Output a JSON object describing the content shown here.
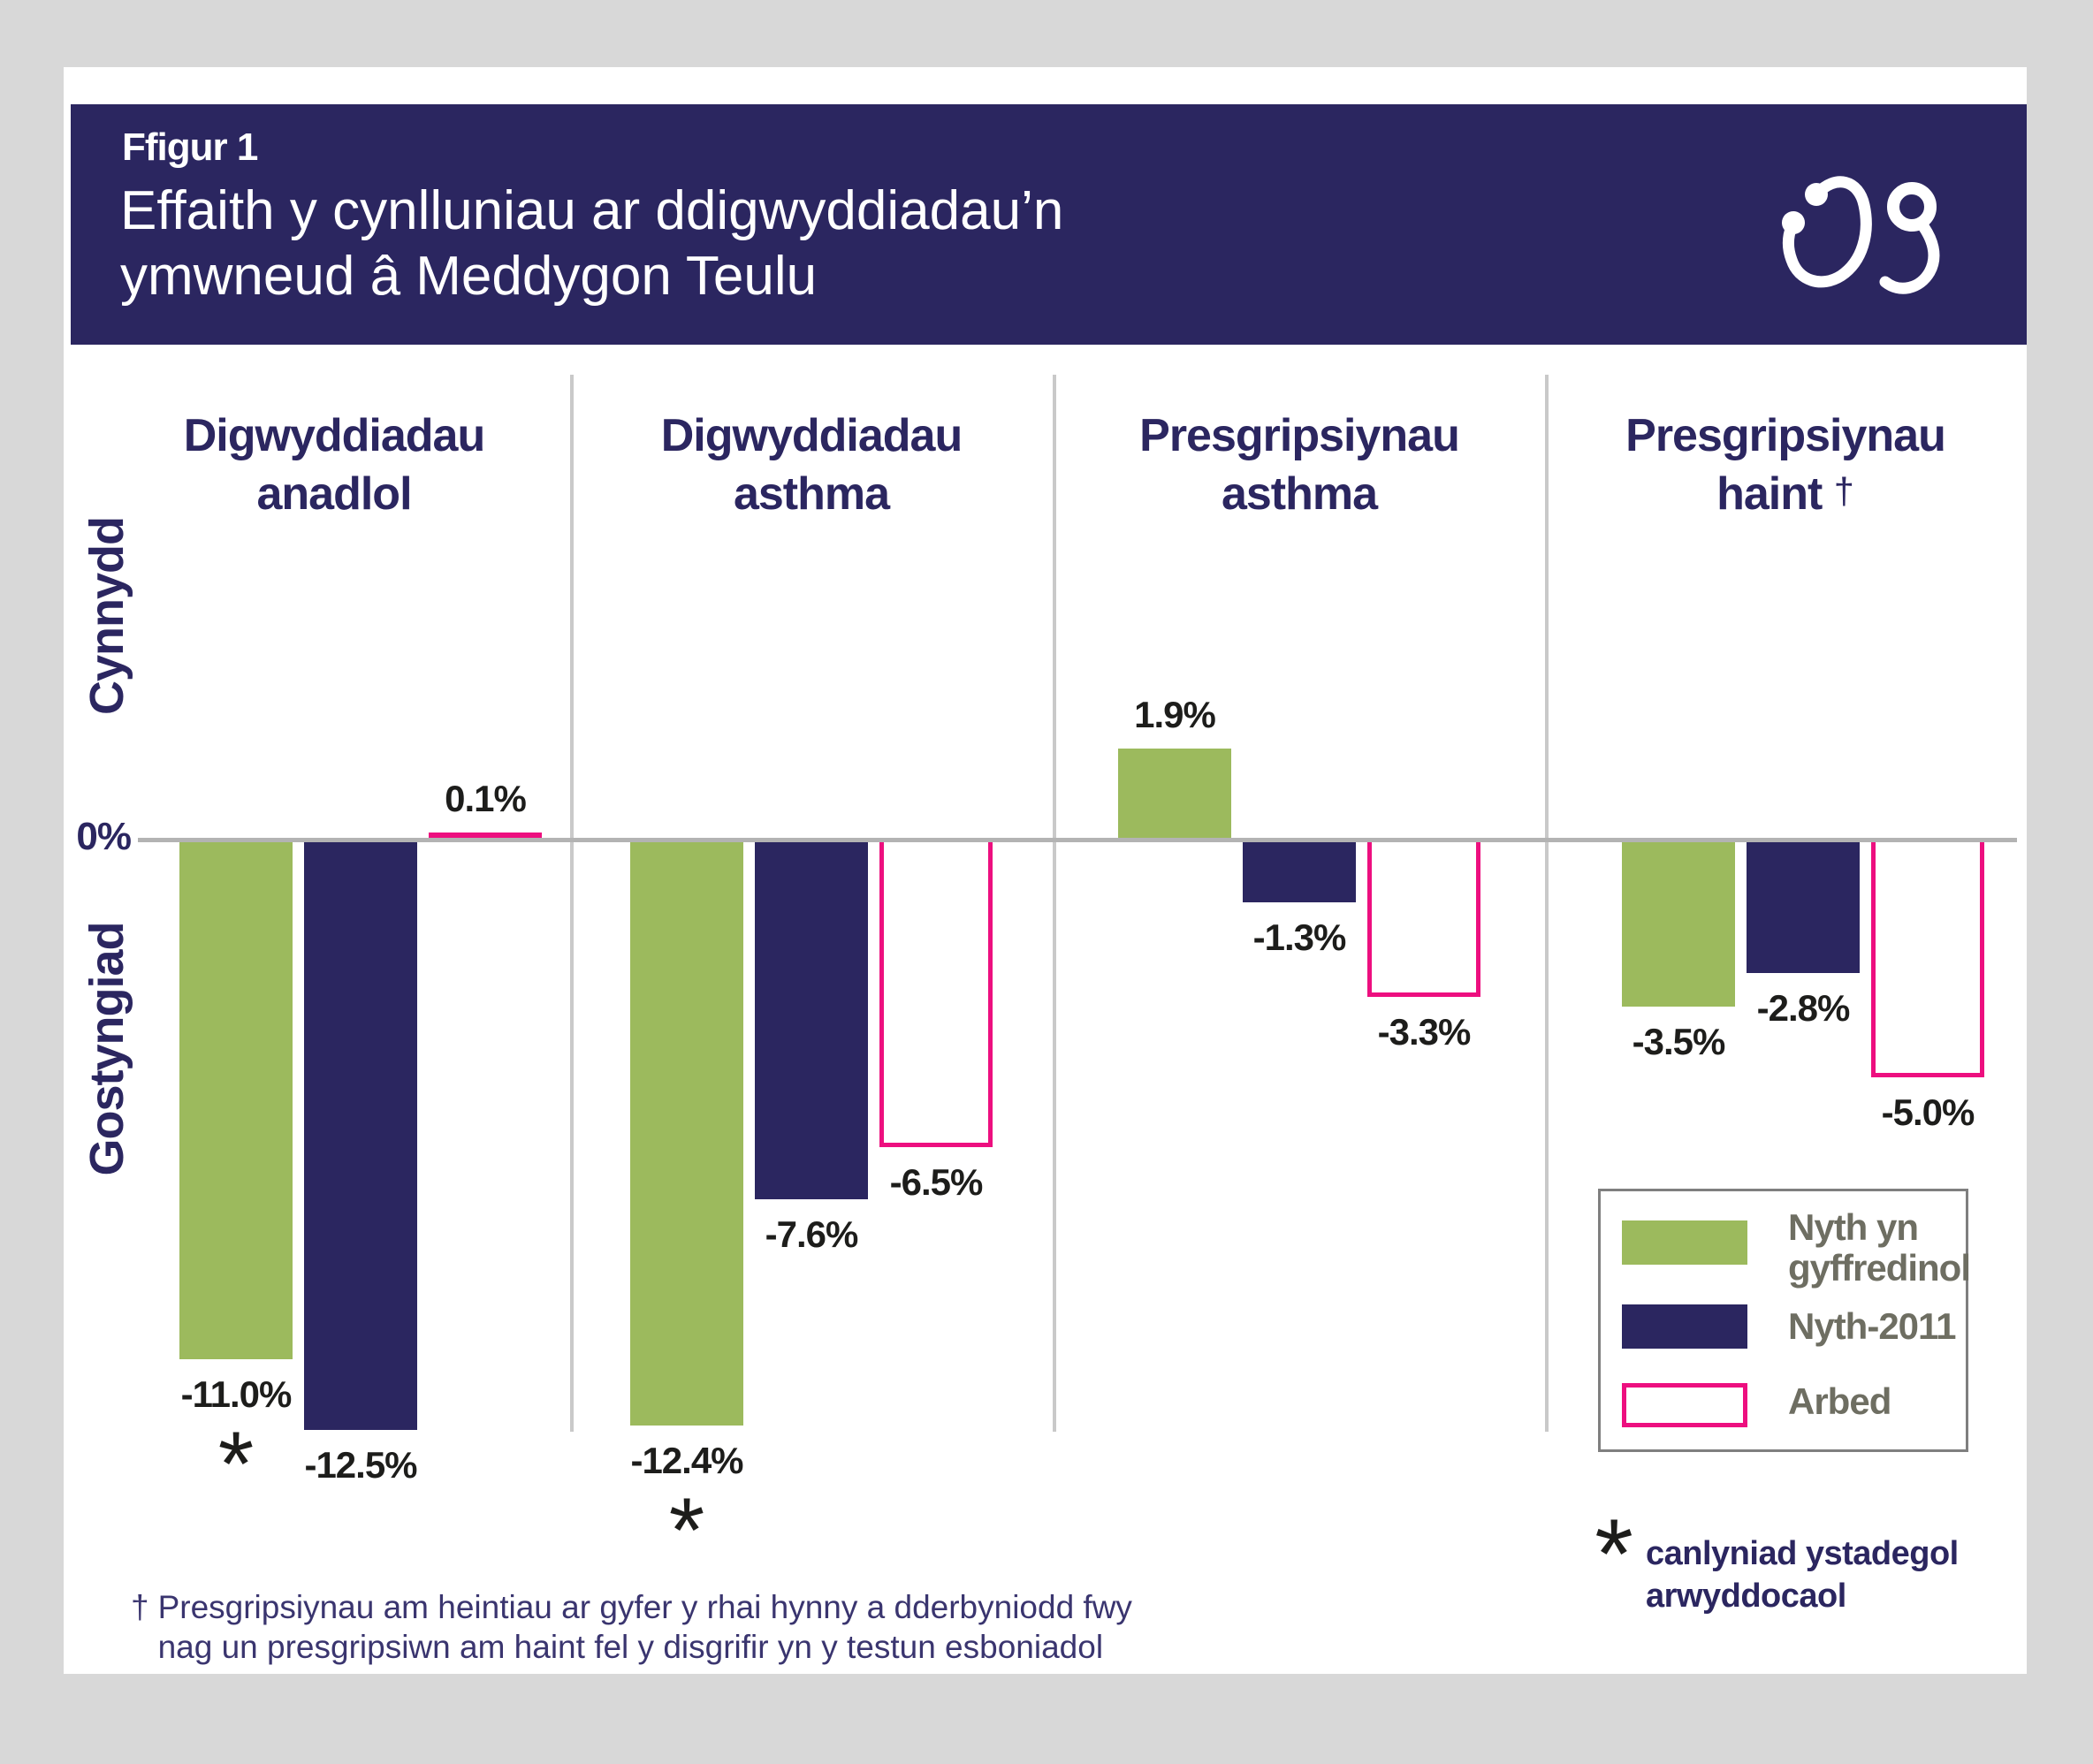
{
  "page": {
    "background": "#d8d8d8",
    "card_background": "#ffffff"
  },
  "header": {
    "figure_label": "Ffigur 1",
    "title_line1": "Effaith y cynlluniau ar ddigwyddiadau’n",
    "title_line2": "ymwneud â Meddygon Teulu",
    "band_color": "#2b2660",
    "icon": "stethoscope-icon"
  },
  "axis": {
    "zero_label": "0%",
    "increase_label": "Cynnydd",
    "decrease_label": "Gostyngiad"
  },
  "chart_data": {
    "type": "bar",
    "unit": "%",
    "baseline": 0,
    "gridlines": false,
    "ylim": [
      -13.5,
      6
    ],
    "categories": [
      {
        "line1": "Digwyddiadau",
        "line2": "anadlol",
        "dagger": false
      },
      {
        "line1": "Digwyddiadau",
        "line2": "asthma",
        "dagger": false
      },
      {
        "line1": "Presgripsiynau",
        "line2": "asthma",
        "dagger": false
      },
      {
        "line1": "Presgripsiynau",
        "line2": "haint",
        "dagger": true
      }
    ],
    "series": [
      {
        "name": "Nyth yn gyffredinol",
        "style": "fill",
        "color": "#9cba5d",
        "values": [
          -11.0,
          -12.4,
          1.9,
          -3.5
        ],
        "labels": [
          "-11.0%",
          "-12.4%",
          "1.9%",
          "-3.5%"
        ]
      },
      {
        "name": "Nyth-2011",
        "style": "fill",
        "color": "#2b2660",
        "values": [
          -12.5,
          -7.6,
          -1.3,
          -2.8
        ],
        "labels": [
          "-12.5%",
          "-7.6%",
          "-1.3%",
          "-2.8%"
        ]
      },
      {
        "name": "Arbed",
        "style": "outline",
        "color": "#ed0f7f",
        "values": [
          0.1,
          -6.5,
          -3.3,
          -5.0
        ],
        "labels": [
          "0.1%",
          "-6.5%",
          "-3.3%",
          "-5.0%"
        ]
      }
    ],
    "significance_symbol": "*",
    "significant_bars": [
      {
        "category_index": 0,
        "series_index": 0
      },
      {
        "category_index": 1,
        "series_index": 0
      }
    ],
    "legend_position": "bottom-right"
  },
  "legend": {
    "items": [
      {
        "label_line1": "Nyth yn",
        "label_line2": "gyffredinol",
        "swatch": "fill",
        "color": "#9cba5d"
      },
      {
        "label_line1": "Nyth-2011",
        "label_line2": "",
        "swatch": "fill",
        "color": "#2b2660"
      },
      {
        "label_line1": "Arbed",
        "label_line2": "",
        "swatch": "outline",
        "color": "#ed0f7f"
      }
    ]
  },
  "notes": {
    "significance_symbol": "*",
    "significance_line1": "canlyniad ystadegol",
    "significance_line2": "arwyddocaol",
    "dagger_symbol": "†",
    "dagger_line1": "Presgripsiynau am heintiau ar gyfer y rhai hynny a dderbyniodd fwy",
    "dagger_line2": "nag un presgripsiwn am haint fel y disgrifir yn y testun esboniadol"
  }
}
